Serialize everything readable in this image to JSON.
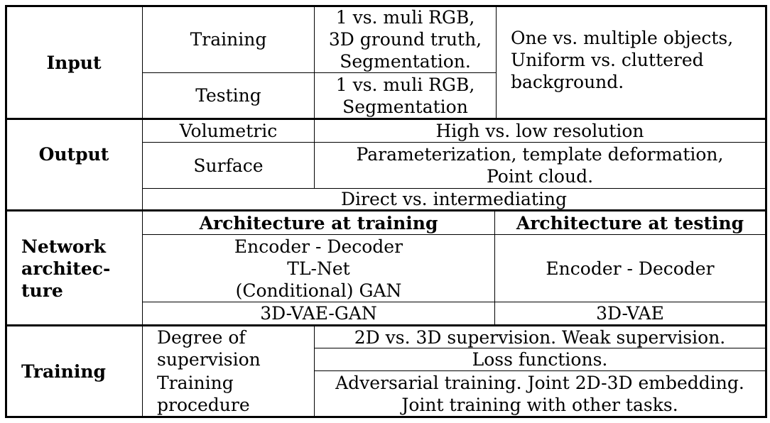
{
  "table": {
    "input": {
      "header": "Input",
      "training_label": "Training",
      "training_data": [
        "1 vs. muli RGB,",
        "3D ground truth,",
        "Segmentation."
      ],
      "testing_label": "Testing",
      "testing_data": [
        "1 vs. muli RGB,",
        "Segmentation"
      ],
      "notes": [
        "One vs. multiple objects,",
        "Uniform vs. cluttered",
        "background."
      ]
    },
    "output": {
      "header": "Output",
      "volumetric_label": "Volumetric",
      "volumetric_value": "High vs. low resolution",
      "surface_label": "Surface",
      "surface_value": [
        "Parameterization, template deformation,",
        "Point cloud."
      ],
      "direct_value": "Direct vs. intermediating"
    },
    "network": {
      "header": [
        "Network",
        "architec-",
        "ture"
      ],
      "training_header": "Architecture at training",
      "testing_header": "Architecture at testing",
      "training_arch": [
        "Encoder - Decoder",
        "TL-Net",
        "(Conditional) GAN"
      ],
      "testing_arch": "Encoder - Decoder",
      "training_vae": "3D-VAE-GAN",
      "testing_vae": "3D-VAE"
    },
    "training": {
      "header": "Training",
      "supervision_label": [
        "Degree of",
        "supervision"
      ],
      "supervision_value_1": "2D vs. 3D supervision. Weak supervision.",
      "supervision_value_2": "Loss functions.",
      "procedure_label": [
        "Training",
        "procedure"
      ],
      "procedure_value": [
        "Adversarial training. Joint 2D-3D embedding.",
        "Joint training with other tasks."
      ]
    }
  }
}
